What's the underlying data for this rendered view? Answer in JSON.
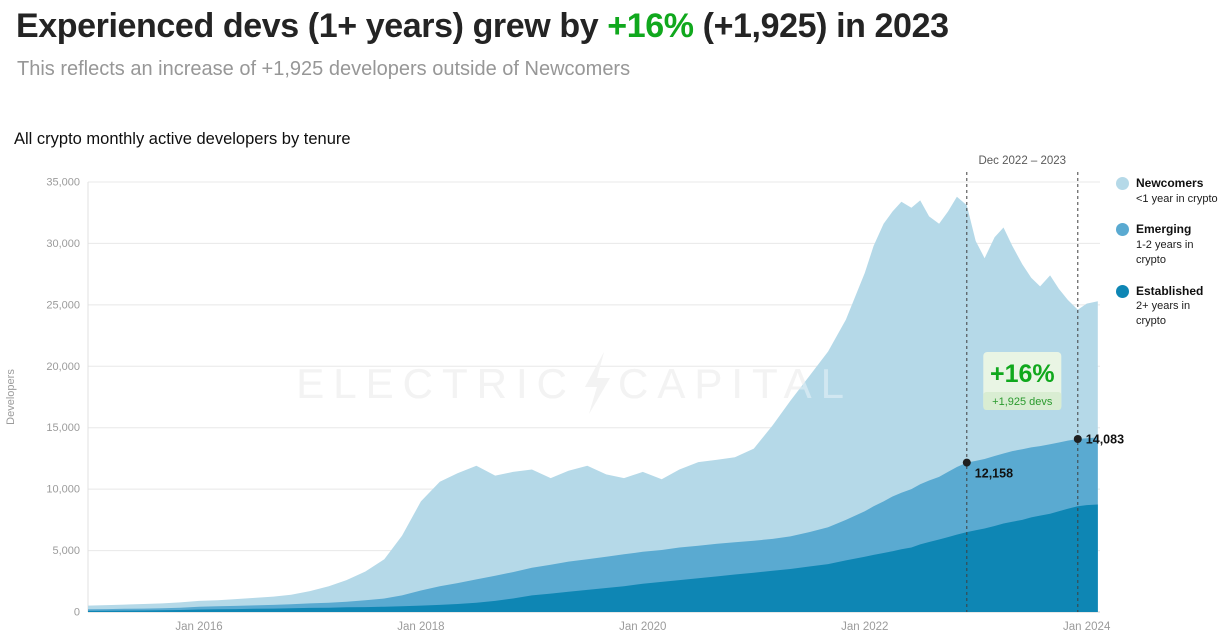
{
  "header": {
    "title_prefix": "Experienced devs (1+ years) grew by ",
    "title_highlight": "+16%",
    "title_suffix": " (+1,925) in 2023",
    "subtitle": "This reflects an increase of +1,925 developers outside of Newcomers"
  },
  "colors": {
    "accent_green": "#10a81d",
    "badge_bg": "#e9f5e4",
    "badge_bg_dark": "#d9edd2",
    "newcomers": "#b5d9e8",
    "emerging": "#5aaad1",
    "established": "#0e86b4",
    "gridline": "#e8e8e8",
    "dashed_line": "#3f3f3f"
  },
  "chart": {
    "section_title": "All crypto monthly active developers by tenure",
    "watermark": {
      "left": "ELECTRIC",
      "right": "CAPITAL"
    },
    "annotations": {
      "range_label": "Dec 2022 – 2023",
      "vlines": [
        2022.92,
        2023.92
      ],
      "pct_label": "+16%",
      "devs_label": "+1,925 devs",
      "points": [
        {
          "x": 2022.92,
          "value": 12158,
          "label": "12,158"
        },
        {
          "x": 2023.92,
          "value": 14083,
          "label": "14,083"
        }
      ]
    },
    "legend": [
      {
        "label": "Newcomers",
        "sublabel": "<1 year in crypto",
        "color": "#b5d9e8"
      },
      {
        "label": "Emerging",
        "sublabel": "1-2 years in crypto",
        "color": "#5aaad1"
      },
      {
        "label": "Established",
        "sublabel": "2+ years in crypto",
        "color": "#0e86b4"
      }
    ]
  },
  "chart_data": {
    "type": "area",
    "stacked": true,
    "title": "All crypto monthly active developers by tenure",
    "xlabel": "",
    "ylabel": "Developers",
    "xlim": [
      2015,
      2024.12
    ],
    "ylim": [
      0,
      35000
    ],
    "yticks": [
      0,
      5000,
      10000,
      15000,
      20000,
      25000,
      30000,
      35000
    ],
    "xticks": [
      {
        "x": 2016,
        "label": "Jan 2016"
      },
      {
        "x": 2018,
        "label": "Jan 2018"
      },
      {
        "x": 2020,
        "label": "Jan 2020"
      },
      {
        "x": 2022,
        "label": "Jan 2022"
      },
      {
        "x": 2024,
        "label": "Jan 2024"
      }
    ],
    "x": [
      2015,
      2015.17,
      2015.33,
      2015.5,
      2015.67,
      2015.83,
      2016,
      2016.17,
      2016.33,
      2016.5,
      2016.67,
      2016.83,
      2017,
      2017.17,
      2017.33,
      2017.5,
      2017.67,
      2017.83,
      2018,
      2018.17,
      2018.33,
      2018.5,
      2018.67,
      2018.83,
      2019,
      2019.17,
      2019.33,
      2019.5,
      2019.67,
      2019.83,
      2020,
      2020.17,
      2020.33,
      2020.5,
      2020.67,
      2020.83,
      2021,
      2021.17,
      2021.33,
      2021.5,
      2021.67,
      2021.83,
      2022,
      2022.08,
      2022.17,
      2022.25,
      2022.33,
      2022.42,
      2022.5,
      2022.58,
      2022.67,
      2022.75,
      2022.83,
      2022.92,
      2023,
      2023.08,
      2023.17,
      2023.25,
      2023.33,
      2023.42,
      2023.5,
      2023.58,
      2023.67,
      2023.75,
      2023.83,
      2023.92,
      2024,
      2024.1
    ],
    "series": [
      {
        "name": "Established",
        "color": "#0e86b4",
        "values": [
          90,
          100,
          110,
          120,
          140,
          160,
          200,
          220,
          240,
          260,
          280,
          300,
          330,
          350,
          380,
          400,
          430,
          460,
          520,
          580,
          650,
          750,
          900,
          1100,
          1350,
          1500,
          1650,
          1800,
          1950,
          2100,
          2300,
          2450,
          2600,
          2750,
          2900,
          3050,
          3200,
          3350,
          3500,
          3700,
          3900,
          4200,
          4500,
          4650,
          4800,
          4950,
          5100,
          5250,
          5500,
          5700,
          5900,
          6100,
          6300,
          6500,
          6650,
          6800,
          7000,
          7200,
          7350,
          7500,
          7700,
          7850,
          8000,
          8200,
          8400,
          8600,
          8700,
          8750
        ]
      },
      {
        "name": "Emerging",
        "color": "#5aaad1",
        "values": [
          130,
          140,
          150,
          160,
          170,
          190,
          220,
          240,
          260,
          280,
          300,
          330,
          370,
          410,
          450,
          550,
          670,
          890,
          1230,
          1520,
          1700,
          1900,
          2050,
          2150,
          2250,
          2350,
          2450,
          2500,
          2550,
          2600,
          2600,
          2600,
          2650,
          2650,
          2650,
          2630,
          2600,
          2600,
          2650,
          2800,
          3000,
          3300,
          3700,
          3950,
          4200,
          4450,
          4600,
          4750,
          4900,
          5000,
          5100,
          5300,
          5500,
          5658,
          5650,
          5650,
          5700,
          5700,
          5750,
          5750,
          5700,
          5650,
          5650,
          5600,
          5550,
          5483,
          5450,
          5450
        ]
      },
      {
        "name": "Newcomers",
        "color": "#b5d9e8",
        "values": [
          300,
          320,
          340,
          370,
          390,
          430,
          480,
          490,
          550,
          610,
          670,
          770,
          1000,
          1340,
          1770,
          2350,
          3200,
          4850,
          7250,
          8500,
          8950,
          9250,
          8150,
          8150,
          8000,
          7050,
          7400,
          7600,
          6700,
          6200,
          6500,
          5750,
          6350,
          6800,
          6850,
          6920,
          7500,
          9250,
          11050,
          12700,
          14300,
          16300,
          19400,
          21200,
          22600,
          23200,
          23700,
          22900,
          23100,
          21500,
          20600,
          21200,
          22000,
          20942,
          17900,
          16350,
          17800,
          18400,
          16700,
          15050,
          13800,
          13000,
          13750,
          12500,
          11450,
          10517,
          10950,
          11100
        ]
      }
    ]
  }
}
